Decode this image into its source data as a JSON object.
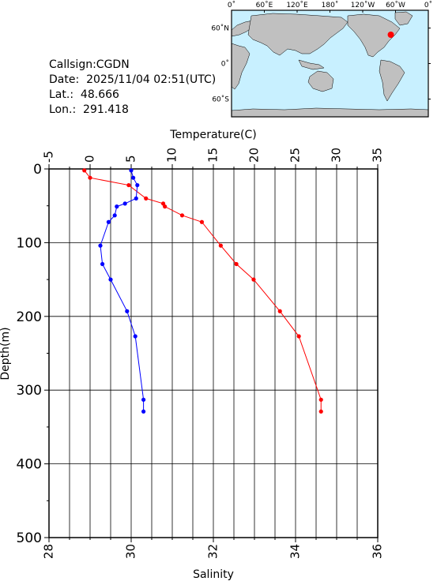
{
  "info": {
    "callsign": "Callsign:CGDN",
    "date": "Date:  2025/11/04 02:51(UTC)",
    "lat": "Lat.:  48.666",
    "lon": "Lon.:  291.418"
  },
  "map": {
    "top_ticks": [
      "0˚",
      "60˚E",
      "120˚E",
      "180˚",
      "120˚W",
      "60˚W",
      "0˚"
    ],
    "lat_ticks": [
      "60˚N",
      "0˚",
      "60˚S"
    ],
    "ocean_color": "#c8f0ff",
    "land_color": "#c0c0c0",
    "marker_color": "#ff0000",
    "marker_lon": 291.418,
    "marker_lat": 48.666
  },
  "chart_data": {
    "type": "line",
    "ylabel": "Depth(m)",
    "ylim": [
      0,
      500
    ],
    "y_ticks": [
      "0",
      "100",
      "200",
      "300",
      "400",
      "500"
    ],
    "grid": true,
    "temperature_axis": {
      "label": "Temperature(C)",
      "lim": [
        -5,
        35
      ],
      "ticks": [
        "-5",
        "0",
        "5",
        "10",
        "15",
        "20",
        "25",
        "30",
        "35"
      ]
    },
    "salinity_axis": {
      "label": "Salinity",
      "lim": [
        28,
        36
      ],
      "ticks": [
        "28",
        "30",
        "32",
        "34",
        "36"
      ]
    },
    "series": [
      {
        "axis": "temperature",
        "color": "#ff0000",
        "depth": [
          2,
          12,
          22,
          40,
          47,
          51,
          63,
          72,
          104,
          129,
          150,
          193,
          227,
          313,
          329
        ],
        "values": [
          -0.7,
          0.0,
          4.7,
          6.8,
          8.9,
          9.1,
          11.2,
          13.6,
          15.9,
          17.8,
          19.9,
          23.1,
          25.4,
          28.1,
          28.1
        ]
      },
      {
        "axis": "salinity",
        "color": "#0000ff",
        "depth": [
          2,
          12,
          22,
          40,
          47,
          51,
          63,
          72,
          104,
          129,
          150,
          193,
          227,
          313,
          329
        ],
        "values": [
          30.0,
          30.05,
          30.15,
          30.12,
          29.85,
          29.65,
          29.6,
          29.45,
          29.25,
          29.3,
          29.5,
          29.9,
          30.1,
          30.3,
          30.3
        ]
      }
    ]
  }
}
